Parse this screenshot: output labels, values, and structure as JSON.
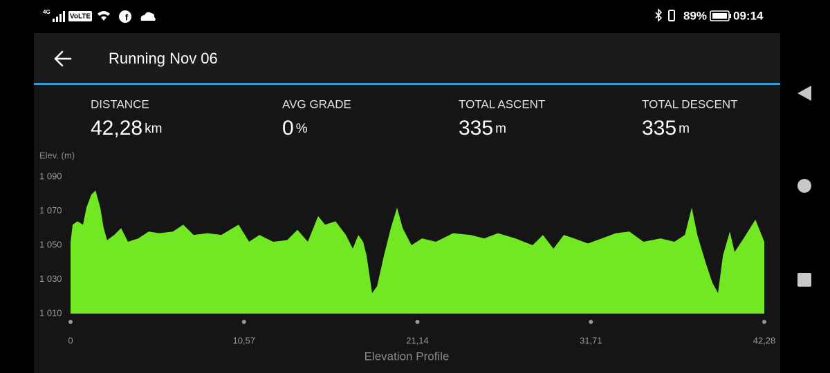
{
  "status_bar": {
    "network": "4G",
    "volte": "VoLTE",
    "battery": "89%",
    "time": "09:14"
  },
  "header": {
    "title": "Running Nov 06"
  },
  "stats": [
    {
      "label": "DISTANCE",
      "value": "42,28",
      "unit": "km"
    },
    {
      "label": "AVG GRADE",
      "value": "0",
      "unit": "%"
    },
    {
      "label": "TOTAL ASCENT",
      "value": "335",
      "unit": "m"
    },
    {
      "label": "TOTAL DESCENT",
      "value": "335",
      "unit": "m"
    }
  ],
  "chart_data": {
    "type": "area",
    "y_label": "Elev. (m)",
    "x_label": "Elevation Profile",
    "color": "#72e824",
    "x": [
      0,
      0.13,
      0.42,
      0.76,
      0.97,
      1.26,
      1.52,
      1.81,
      2.02,
      2.23,
      2.66,
      3.08,
      3.5,
      4.13,
      4.76,
      5.4,
      6.24,
      6.87,
      7.5,
      8.35,
      9.19,
      10.24,
      10.88,
      11.51,
      12.35,
      13.2,
      13.83,
      14.46,
      15.09,
      15.51,
      16.15,
      16.78,
      17.2,
      17.54,
      17.83,
      18.04,
      18.38,
      18.68,
      19.1,
      19.52,
      19.9,
      20.24,
      20.78,
      21.42,
      22.26,
      23.31,
      24.37,
      25.21,
      26.05,
      27.11,
      28.16,
      28.79,
      29.43,
      30.06,
      30.69,
      31.53,
      32.38,
      33.22,
      34.06,
      34.91,
      35.96,
      36.8,
      37.44,
      37.86,
      38.2,
      38.7,
      39.12,
      39.46,
      39.76,
      40.18,
      40.47,
      41.02,
      41.74,
      42.28
    ],
    "values": [
      1052,
      1062,
      1064,
      1062,
      1072,
      1079.5,
      1082,
      1072,
      1060,
      1053,
      1056,
      1060,
      1052,
      1054,
      1058,
      1057,
      1058,
      1062,
      1056,
      1057,
      1056,
      1062,
      1052,
      1056,
      1052,
      1053,
      1059,
      1052,
      1067,
      1062,
      1064,
      1056,
      1048,
      1056,
      1052,
      1044,
      1022,
      1026,
      1044,
      1060,
      1072,
      1060,
      1050,
      1054,
      1052,
      1057,
      1056,
      1054,
      1057,
      1054,
      1050,
      1056,
      1048,
      1056,
      1054,
      1051,
      1054,
      1057,
      1058,
      1052,
      1054,
      1052,
      1056,
      1072,
      1056,
      1040,
      1028,
      1022,
      1044,
      1058,
      1046,
      1054,
      1065,
      1052
    ],
    "xlim": [
      0,
      42.28
    ],
    "ylim": [
      1010,
      1090
    ],
    "xticks": [
      0,
      {
        "value": 10.57,
        "label": "10,57"
      },
      {
        "value": 21.14,
        "label": "21,14"
      },
      {
        "value": 31.71,
        "label": "31,71"
      },
      {
        "value": 42.28,
        "label": "42,28"
      }
    ],
    "yticks": [
      {
        "value": 1090,
        "label": "1 090"
      },
      {
        "value": 1070,
        "label": "1 070"
      },
      {
        "value": 1050,
        "label": "1 050"
      },
      {
        "value": 1030,
        "label": "1 030"
      },
      {
        "value": 1010,
        "label": "1 010"
      }
    ]
  }
}
